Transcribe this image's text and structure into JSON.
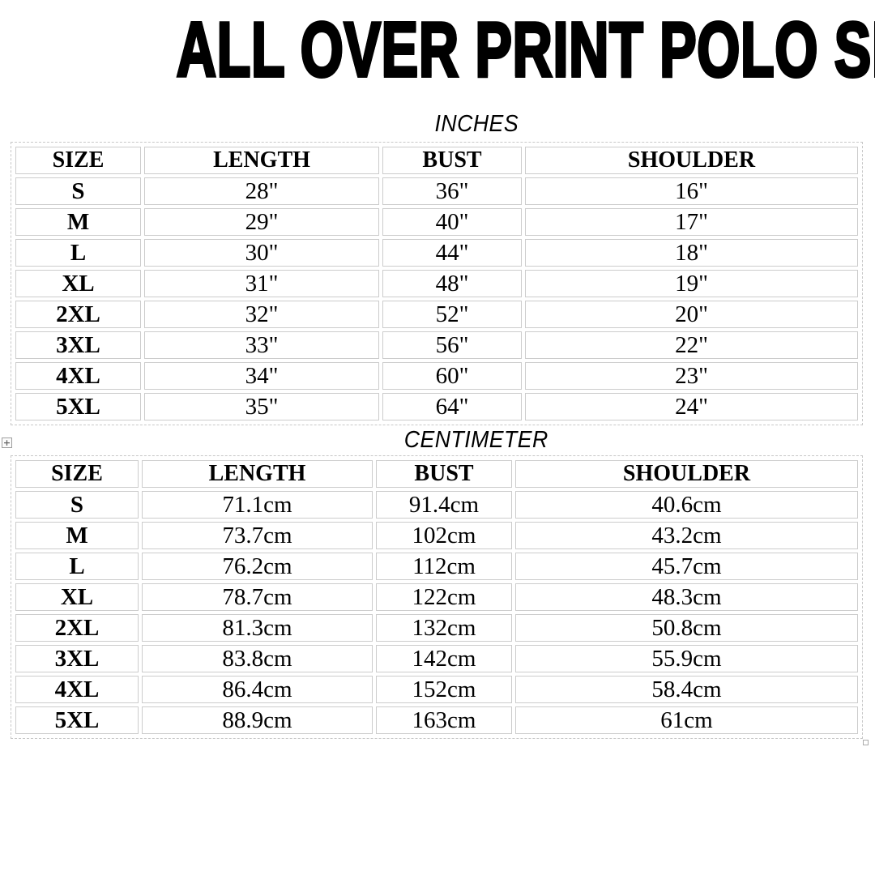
{
  "page": {
    "title": "ALL OVER PRINT POLO SHIRTS"
  },
  "colors": {
    "background": "#ffffff",
    "text": "#000000",
    "cell_border": "#cccccc",
    "table_outline_dashed": "#c7c7c7"
  },
  "icons": {
    "table_move_handle": "+",
    "table_resize_handle": ""
  },
  "tables": [
    {
      "unit_label": "INCHES",
      "headers": [
        "SIZE",
        "LENGTH",
        "BUST",
        "SHOULDER"
      ],
      "rows": [
        [
          "S",
          "28\"",
          "36\"",
          "16\""
        ],
        [
          "M",
          "29\"",
          "40\"",
          "17\""
        ],
        [
          "L",
          "30\"",
          "44\"",
          "18\""
        ],
        [
          "XL",
          "31\"",
          "48\"",
          "19\""
        ],
        [
          "2XL",
          "32\"",
          "52\"",
          "20\""
        ],
        [
          "3XL",
          "33\"",
          "56\"",
          "22\""
        ],
        [
          "4XL",
          "34\"",
          "60\"",
          "23\""
        ],
        [
          "5XL",
          "35\"",
          "64\"",
          "24\""
        ]
      ]
    },
    {
      "unit_label": "CENTIMETER",
      "headers": [
        "SIZE",
        "LENGTH",
        "BUST",
        "SHOULDER"
      ],
      "rows": [
        [
          "S",
          "71.1cm",
          "91.4cm",
          "40.6cm"
        ],
        [
          "M",
          "73.7cm",
          "102cm",
          "43.2cm"
        ],
        [
          "L",
          "76.2cm",
          "112cm",
          "45.7cm"
        ],
        [
          "XL",
          "78.7cm",
          "122cm",
          "48.3cm"
        ],
        [
          "2XL",
          "81.3cm",
          "132cm",
          "50.8cm"
        ],
        [
          "3XL",
          "83.8cm",
          "142cm",
          "55.9cm"
        ],
        [
          "4XL",
          "86.4cm",
          "152cm",
          "58.4cm"
        ],
        [
          "5XL",
          "88.9cm",
          "163cm",
          "61cm"
        ]
      ]
    }
  ]
}
